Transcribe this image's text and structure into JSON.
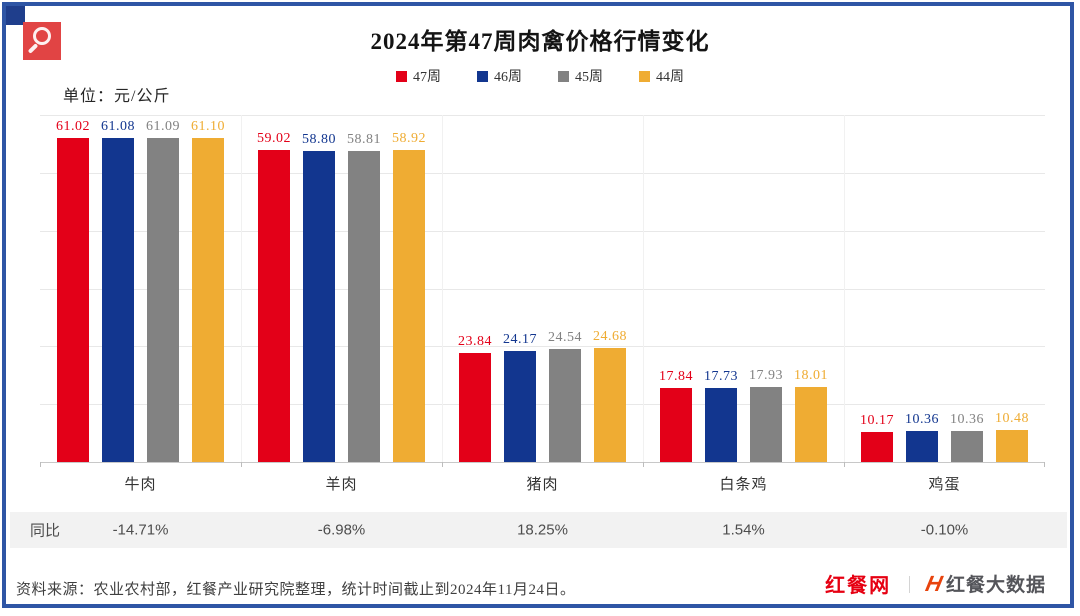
{
  "header": {
    "title": "2024年第47周肉禽价格行情变化",
    "unit_label": "单位：元/公斤"
  },
  "chart_data": {
    "type": "bar",
    "title": "2024年第47周肉禽价格行情变化",
    "unit": "元/公斤",
    "categories": [
      "牛肉",
      "羊肉",
      "猪肉",
      "白条鸡",
      "鸡蛋"
    ],
    "series": [
      {
        "name": "47周",
        "color": "#E30018",
        "values": [
          61.02,
          59.02,
          23.84,
          17.84,
          10.17
        ]
      },
      {
        "name": "46周",
        "color": "#12368F",
        "values": [
          61.08,
          58.8,
          24.17,
          17.73,
          10.36
        ]
      },
      {
        "name": "45周",
        "color": "#828282",
        "values": [
          61.09,
          58.81,
          24.54,
          17.93,
          10.36
        ]
      },
      {
        "name": "44周",
        "color": "#EFAC33",
        "values": [
          61.1,
          58.92,
          24.68,
          18.01,
          10.48
        ]
      }
    ],
    "ylim": [
      5,
      65
    ],
    "grid_step": 10,
    "grid": true,
    "legend_position": "top",
    "value_labels_decimals": 2,
    "yoy_row": {
      "label": "同比",
      "values": [
        "-14.71%",
        "-6.98%",
        "18.25%",
        "1.54%",
        "-0.10%"
      ]
    }
  },
  "footer": {
    "source_text": "资料来源：农业农村部，红餐产业研究院整理，统计时间截止到2024年11月24日。",
    "brand_left": "红餐网",
    "brand_divider": "｜",
    "brand_mark": "H",
    "brand_right": "红餐大数据"
  },
  "colors": {
    "frame": "#2E55A5",
    "corner_square": "#1F3E8C",
    "search_badge": "#E14444",
    "yoy_band_bg": "#F2F2F2",
    "gridline": "#E8E8E8"
  }
}
